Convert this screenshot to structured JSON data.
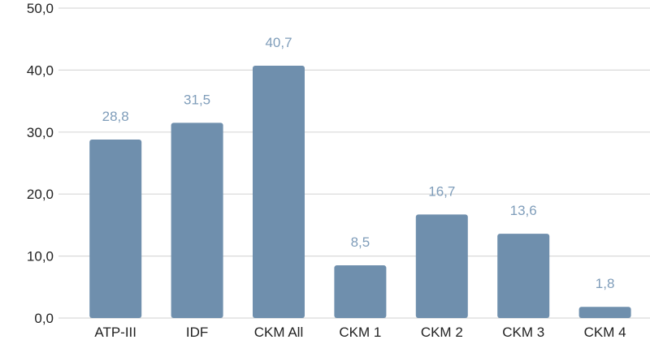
{
  "chart_data": {
    "type": "bar",
    "categories": [
      "ATP-III",
      "IDF",
      "CKM All",
      "CKM 1",
      "CKM 2",
      "CKM 3",
      "CKM 4"
    ],
    "values": [
      28.8,
      31.5,
      40.7,
      8.5,
      16.7,
      13.6,
      1.8
    ],
    "value_labels": [
      "28,8",
      "31,5",
      "40,7",
      "8,5",
      "16,7",
      "13,6",
      "1,8"
    ],
    "y_ticks": [
      0,
      10,
      20,
      30,
      40,
      50
    ],
    "y_tick_labels": [
      "0,0",
      "10,0",
      "20,0",
      "30,0",
      "40,0",
      "50,0"
    ],
    "ylim": [
      0,
      50
    ],
    "grid": true,
    "legend": "none",
    "colors": {
      "bar": "#6f8fad",
      "value_label": "#7f9dba",
      "grid": "#d9d9d9",
      "axis_text": "#222222"
    }
  }
}
